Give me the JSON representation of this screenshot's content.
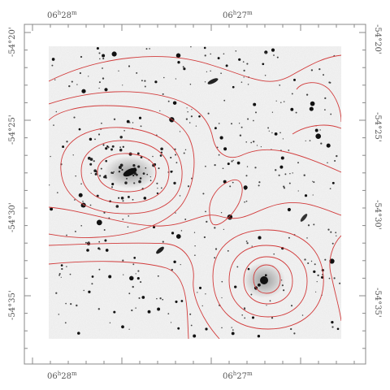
{
  "axes": {
    "top_ra_labels": [
      "06h28m",
      "06h27m"
    ],
    "bottom_ra_labels": [
      "06h28m",
      "06h27m"
    ],
    "left_dec_labels": [
      "-54°20'",
      "-54°25'",
      "-54°30'",
      "-54°35'"
    ],
    "right_dec_labels": [
      "-54°20'",
      "-54°25'",
      "-54°30'",
      "-54°35'"
    ]
  },
  "colors": {
    "contour": "#d23b3b",
    "frame": "#888888",
    "sky": "#f6f6f6",
    "stars": "#111111"
  }
}
